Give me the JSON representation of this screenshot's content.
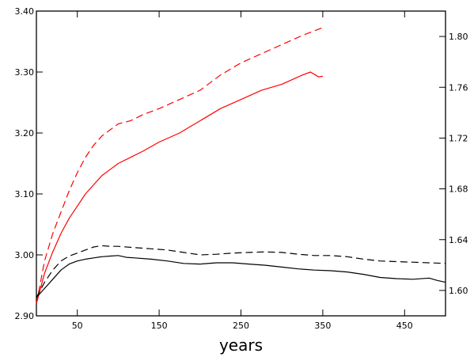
{
  "chart_data": {
    "type": "line",
    "xlabel": "years",
    "ylabel_left": "",
    "ylabel_right": "",
    "xlim": [
      0,
      500
    ],
    "ylim_left": [
      2.9,
      3.4
    ],
    "ylim_right": [
      1.58,
      1.82
    ],
    "grid": false,
    "legend": "none",
    "x_ticks": [
      50,
      150,
      250,
      350,
      450
    ],
    "x_tick_labels": [
      "50",
      "150",
      "250",
      "350",
      "450"
    ],
    "y_left_ticks": [
      2.9,
      3.0,
      3.1,
      3.2,
      3.3,
      3.4
    ],
    "y_left_tick_labels": [
      "2.90",
      "3.00",
      "3.10",
      "3.20",
      "3.30",
      "3.40"
    ],
    "y_right_ticks": [
      1.6,
      1.64,
      1.68,
      1.72,
      1.76,
      1.8
    ],
    "y_right_tick_labels": [
      "1.60",
      "1.64",
      "1.68",
      "1.72",
      "1.76",
      "1.80"
    ],
    "series": [
      {
        "axis": "left",
        "color": "#ff0000",
        "dash": "dashed",
        "x": [
          0,
          5,
          10,
          20,
          30,
          40,
          50,
          60,
          70,
          80,
          90,
          100,
          115,
          130,
          150,
          175,
          200,
          225,
          250,
          275,
          300,
          325,
          350
        ],
        "values": [
          2.92,
          2.955,
          2.99,
          3.035,
          3.07,
          3.105,
          3.135,
          3.16,
          3.18,
          3.195,
          3.205,
          3.215,
          3.22,
          3.23,
          3.24,
          3.255,
          3.27,
          3.295,
          3.315,
          3.33,
          3.345,
          3.36,
          3.373
        ]
      },
      {
        "axis": "left",
        "color": "#ff0000",
        "dash": "solid",
        "x": [
          0,
          5,
          10,
          20,
          30,
          40,
          50,
          60,
          70,
          80,
          90,
          100,
          115,
          130,
          150,
          175,
          200,
          225,
          250,
          275,
          300,
          325,
          335,
          345,
          350
        ],
        "values": [
          2.92,
          2.945,
          2.97,
          3.005,
          3.035,
          3.06,
          3.08,
          3.1,
          3.115,
          3.13,
          3.14,
          3.15,
          3.16,
          3.17,
          3.185,
          3.2,
          3.22,
          3.24,
          3.255,
          3.27,
          3.28,
          3.295,
          3.3,
          3.292,
          3.293
        ]
      },
      {
        "axis": "left",
        "color": "#000000",
        "dash": "dashed",
        "x": [
          0,
          10,
          20,
          30,
          40,
          50,
          60,
          70,
          80,
          90,
          100,
          120,
          140,
          160,
          180,
          200,
          220,
          240,
          260,
          280,
          300,
          320,
          340,
          360,
          380,
          400,
          420,
          440,
          460,
          480,
          500
        ],
        "values": [
          2.93,
          2.955,
          2.975,
          2.99,
          2.998,
          3.003,
          3.008,
          3.013,
          3.015,
          3.014,
          3.014,
          3.012,
          3.01,
          3.008,
          3.004,
          3.0,
          3.001,
          3.003,
          3.004,
          3.005,
          3.004,
          3.001,
          2.999,
          2.999,
          2.997,
          2.993,
          2.99,
          2.989,
          2.988,
          2.987,
          2.986
        ]
      },
      {
        "axis": "left",
        "color": "#000000",
        "dash": "solid",
        "x": [
          0,
          10,
          20,
          30,
          40,
          50,
          60,
          70,
          80,
          90,
          100,
          110,
          120,
          140,
          160,
          180,
          200,
          220,
          240,
          260,
          280,
          300,
          320,
          340,
          360,
          380,
          400,
          420,
          440,
          460,
          480,
          490,
          500
        ],
        "values": [
          2.93,
          2.945,
          2.96,
          2.975,
          2.985,
          2.99,
          2.993,
          2.995,
          2.997,
          2.998,
          2.999,
          2.996,
          2.995,
          2.993,
          2.99,
          2.986,
          2.985,
          2.987,
          2.987,
          2.985,
          2.983,
          2.98,
          2.977,
          2.975,
          2.974,
          2.972,
          2.968,
          2.963,
          2.961,
          2.96,
          2.962,
          2.958,
          2.955
        ]
      }
    ]
  }
}
